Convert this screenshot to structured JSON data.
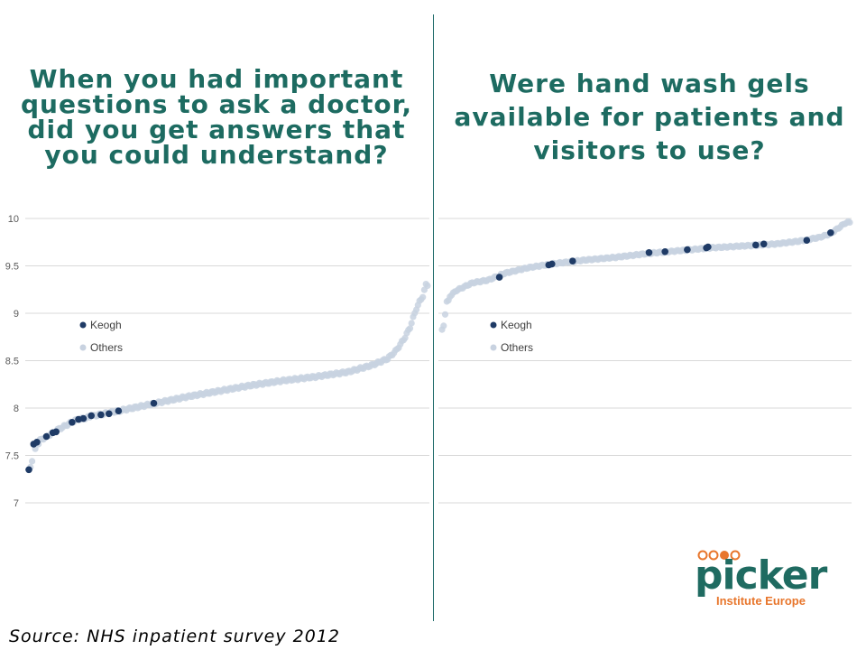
{
  "source": "Source: NHS inpatient survey 2012",
  "logo": {
    "word": "picker",
    "subtitle": "Institute Europe",
    "colors": {
      "main": "#1f6b61",
      "accent": "#e8762c"
    }
  },
  "colors": {
    "keogh": "#1f3b66",
    "others": "#c8d2e0",
    "title": "#1d6b61"
  },
  "chart_data": [
    {
      "type": "scatter",
      "title": "When you had important questions to ask a doctor, did you get answers that you could understand?",
      "xlabel": "",
      "ylabel": "",
      "ylim": [
        7,
        10
      ],
      "yticks": [
        "7",
        "7.5",
        "8",
        "8.5",
        "9",
        "9.5",
        "10"
      ],
      "grid": true,
      "legend": {
        "placement": "left",
        "entries": [
          "Keogh",
          "Others"
        ]
      },
      "series": [
        {
          "name": "Keogh",
          "x": [
            1,
            4,
            6,
            12,
            16,
            18,
            28,
            32,
            35,
            40,
            46,
            51,
            57,
            79
          ],
          "y": [
            7.35,
            7.62,
            7.64,
            7.7,
            7.74,
            7.75,
            7.85,
            7.88,
            7.89,
            7.92,
            7.93,
            7.94,
            7.97,
            8.05
          ]
        },
        {
          "name": "Others",
          "curve": [
            [
              2,
              7.38
            ],
            [
              3,
              7.45
            ],
            [
              5,
              7.56
            ],
            [
              8,
              7.66
            ],
            [
              10,
              7.68
            ],
            [
              20,
              7.78
            ],
            [
              30,
              7.87
            ],
            [
              45,
              7.93
            ],
            [
              60,
              7.98
            ],
            [
              80,
              8.05
            ],
            [
              100,
              8.12
            ],
            [
              120,
              8.18
            ],
            [
              140,
              8.24
            ],
            [
              160,
              8.29
            ],
            [
              180,
              8.33
            ],
            [
              200,
              8.38
            ],
            [
              215,
              8.45
            ],
            [
              225,
              8.52
            ],
            [
              230,
              8.6
            ],
            [
              233,
              8.67
            ],
            [
              236,
              8.75
            ],
            [
              239,
              8.85
            ],
            [
              241,
              8.95
            ],
            [
              243,
              9.05
            ],
            [
              245,
              9.12
            ],
            [
              247,
              9.18
            ],
            [
              249,
              9.3
            ]
          ]
        }
      ]
    },
    {
      "type": "scatter",
      "title": "Were hand wash gels available for patients and visitors to use?",
      "xlabel": "",
      "ylabel": "",
      "ylim": [
        7,
        10
      ],
      "yticks": [
        "7",
        "7.5",
        "8",
        "8.5",
        "9",
        "9.5",
        "10"
      ],
      "grid": true,
      "legend": {
        "placement": "left",
        "entries": [
          "Keogh",
          "Others"
        ]
      },
      "series": [
        {
          "name": "Keogh",
          "x": [
            37,
            68,
            70,
            83,
            131,
            141,
            155,
            167,
            168,
            198,
            203,
            230,
            245
          ],
          "y": [
            9.38,
            9.51,
            9.52,
            9.55,
            9.64,
            9.65,
            9.67,
            9.69,
            9.7,
            9.72,
            9.73,
            9.77,
            9.85
          ]
        },
        {
          "name": "Others",
          "curve": [
            [
              1,
              8.82
            ],
            [
              2,
              8.87
            ],
            [
              4,
              9.12
            ],
            [
              5,
              9.13
            ],
            [
              6,
              9.18
            ],
            [
              10,
              9.24
            ],
            [
              15,
              9.28
            ],
            [
              20,
              9.32
            ],
            [
              30,
              9.35
            ],
            [
              40,
              9.42
            ],
            [
              55,
              9.48
            ],
            [
              70,
              9.52
            ],
            [
              90,
              9.56
            ],
            [
              110,
              9.59
            ],
            [
              130,
              9.63
            ],
            [
              150,
              9.66
            ],
            [
              170,
              9.69
            ],
            [
              190,
              9.71
            ],
            [
              210,
              9.73
            ],
            [
              225,
              9.76
            ],
            [
              238,
              9.8
            ],
            [
              245,
              9.84
            ],
            [
              250,
              9.9
            ],
            [
              254,
              9.95
            ],
            [
              256,
              9.96
            ]
          ]
        }
      ]
    }
  ]
}
